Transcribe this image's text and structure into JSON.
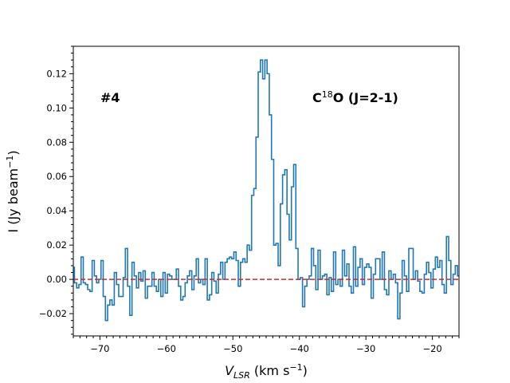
{
  "chart_data": {
    "type": "line",
    "drawstyle": "steps-mid",
    "title": "",
    "xlabel": {
      "main": "V",
      "sub": "LSR",
      "unit_pre": " (km s",
      "unit_sup": "−1",
      "unit_post": ")"
    },
    "ylabel": {
      "main": "I (Jy beam",
      "sup": "−1",
      "post": ")"
    },
    "xlim": [
      -74,
      -16
    ],
    "ylim": [
      -0.033,
      0.136
    ],
    "x_major_ticks": [
      -70,
      -60,
      -50,
      -40,
      -30,
      -20
    ],
    "x_tick_labels": [
      "−70",
      "−60",
      "−50",
      "−40",
      "−30",
      "−20"
    ],
    "y_major_ticks": [
      -0.02,
      0.0,
      0.02,
      0.04,
      0.06,
      0.08,
      0.1,
      0.12
    ],
    "y_tick_labels": [
      "−0.02",
      "0.00",
      "0.02",
      "0.04",
      "0.06",
      "0.08",
      "0.10",
      "0.12"
    ],
    "minor_ticks": true,
    "grid": false,
    "baseline": {
      "y": 0.0,
      "color": "#d62728",
      "style": "dashed"
    },
    "line_color": "#1f77b4",
    "annotations": {
      "source": "#4",
      "line_prefix": "C",
      "line_sup": "18",
      "line_suffix": "O (J=2-1)"
    },
    "series": [
      {
        "name": "spectrum",
        "x0": -74.0,
        "dx": 0.333,
        "values": [
          0.007,
          -0.002,
          -0.005,
          -0.003,
          0.013,
          -0.002,
          -0.003,
          -0.006,
          -0.007,
          0.011,
          0.002,
          -0.002,
          0.0,
          0.011,
          -0.01,
          -0.024,
          -0.015,
          -0.012,
          -0.015,
          0.004,
          -0.003,
          -0.01,
          -0.01,
          0.001,
          0.018,
          -0.004,
          -0.021,
          0.01,
          0.002,
          -0.005,
          0.004,
          -0.001,
          0.005,
          -0.011,
          -0.004,
          -0.004,
          0.004,
          -0.004,
          -0.007,
          0.0,
          -0.01,
          0.004,
          -0.008,
          0.003,
          0.002,
          0.0,
          0.0,
          0.006,
          -0.004,
          -0.012,
          -0.01,
          -0.002,
          0.002,
          0.005,
          -0.006,
          0.002,
          0.012,
          -0.002,
          0.0,
          -0.003,
          0.012,
          -0.012,
          -0.009,
          0.004,
          -0.001,
          -0.008,
          0.003,
          0.01,
          0.0,
          0.01,
          0.012,
          0.013,
          0.012,
          0.016,
          0.011,
          -0.004,
          0.01,
          0.012,
          0.01,
          0.02,
          0.017,
          0.049,
          0.053,
          0.083,
          0.121,
          0.128,
          0.117,
          0.128,
          0.12,
          0.096,
          0.07,
          0.02,
          0.021,
          0.008,
          0.044,
          0.061,
          0.064,
          0.038,
          0.023,
          0.054,
          0.067,
          0.018,
          0.0,
          0.001,
          -0.016,
          -0.004,
          0.0,
          0.002,
          0.018,
          0.008,
          -0.006,
          0.017,
          0.0,
          0.002,
          0.003,
          -0.009,
          0.001,
          -0.007,
          0.016,
          -0.003,
          0.0,
          -0.004,
          0.017,
          0.002,
          0.009,
          -0.004,
          -0.008,
          0.019,
          -0.004,
          0.007,
          0.012,
          -0.003,
          0.007,
          0.009,
          0.007,
          -0.011,
          0.003,
          0.012,
          0.012,
          0.0,
          0.016,
          -0.006,
          -0.009,
          0.005,
          0.0,
          0.003,
          -0.002,
          -0.023,
          -0.008,
          0.011,
          0.002,
          -0.007,
          0.018,
          0.018,
          0.0,
          0.005,
          -0.001,
          -0.007,
          -0.008,
          0.003,
          0.01,
          0.004,
          -0.005,
          0.006,
          0.013,
          0.007,
          0.011,
          -0.003,
          -0.008,
          0.025,
          0.011,
          -0.003,
          0.003,
          0.008,
          0.002,
          -0.001,
          0.002,
          0.002,
          0.002,
          -0.005,
          0.009,
          0.016
        ]
      }
    ]
  }
}
